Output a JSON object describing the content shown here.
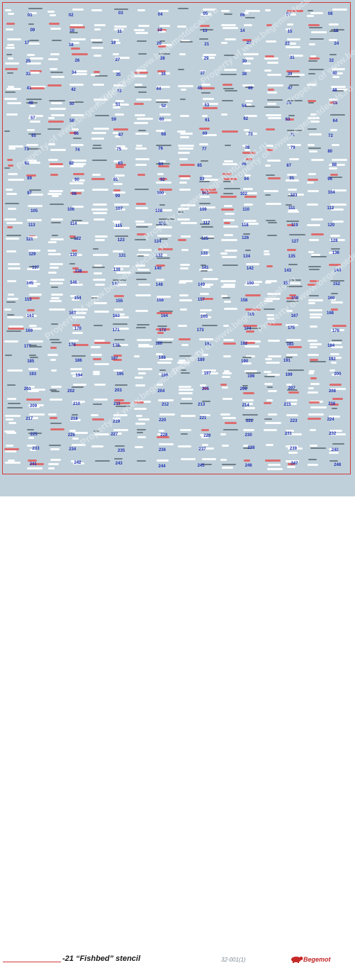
{
  "sheet": {
    "title_text": "-21 “Fishbed” stencil",
    "code": "32-001(1)",
    "brand": "Begemot",
    "watermark": "Property of www.begemotdecals.ru",
    "colors": {
      "background": "#bfd0da",
      "frame": "#d23a3a",
      "numbers": "#1f2fb5",
      "brand": "#c62828"
    }
  },
  "decals": [
    "01",
    "02",
    "03",
    "04",
    "05",
    "06",
    "07",
    "08",
    "09",
    "10",
    "11",
    "12",
    "13",
    "14",
    "15",
    "16",
    "17",
    "18",
    "19",
    "20",
    "21",
    "22",
    "23",
    "24",
    "25",
    "26",
    "27",
    "28",
    "29",
    "30",
    "31",
    "32",
    "33",
    "34",
    "35",
    "36",
    "37",
    "38",
    "39",
    "40",
    "41",
    "42",
    "43",
    "44",
    "45",
    "46",
    "47",
    "48",
    "49",
    "50",
    "51",
    "52",
    "53",
    "54",
    "55",
    "56",
    "57",
    "58",
    "59",
    "60",
    "61",
    "62",
    "63",
    "64",
    "65",
    "66",
    "67",
    "68",
    "69",
    "70",
    "71",
    "72",
    "73",
    "74",
    "75",
    "76",
    "77",
    "78",
    "79",
    "80",
    "81",
    "82",
    "83",
    "84",
    "85",
    "86",
    "87",
    "88",
    "89",
    "90",
    "91",
    "92",
    "93",
    "94",
    "95",
    "96",
    "97",
    "98",
    "99",
    "100",
    "101",
    "102",
    "103",
    "104",
    "105",
    "106",
    "107",
    "108",
    "109",
    "110",
    "111",
    "112",
    "113",
    "114",
    "115",
    "116",
    "117",
    "118",
    "119",
    "120",
    "121",
    "122",
    "123",
    "124",
    "125",
    "126",
    "127",
    "128",
    "129",
    "130",
    "131",
    "132",
    "133",
    "134",
    "135",
    "136",
    "137",
    "138",
    "139",
    "140",
    "141",
    "142",
    "143",
    "144",
    "145",
    "146",
    "147",
    "148",
    "149",
    "150",
    "151",
    "152",
    "153",
    "154",
    "155",
    "156",
    "157",
    "158",
    "159",
    "160",
    "161",
    "162",
    "163",
    "164",
    "165",
    "166",
    "167",
    "168",
    "169",
    "170",
    "171",
    "172",
    "173",
    "174",
    "175",
    "176",
    "177",
    "178",
    "179",
    "180",
    "181",
    "182",
    "183",
    "184",
    "185",
    "186",
    "187",
    "188",
    "189",
    "190",
    "191",
    "192",
    "193",
    "194",
    "195",
    "196",
    "197",
    "198",
    "199",
    "200",
    "201",
    "202",
    "203",
    "204",
    "205",
    "206",
    "207",
    "208",
    "209",
    "210",
    "211",
    "212",
    "213",
    "214",
    "215",
    "216",
    "217",
    "218",
    "219",
    "220",
    "221",
    "222",
    "223",
    "224",
    "225",
    "226",
    "227",
    "228",
    "229",
    "230",
    "231",
    "232",
    "233",
    "234",
    "235",
    "236",
    "237",
    "238",
    "239",
    "240",
    "241",
    "242",
    "243",
    "244",
    "245",
    "246",
    "247",
    "248"
  ]
}
